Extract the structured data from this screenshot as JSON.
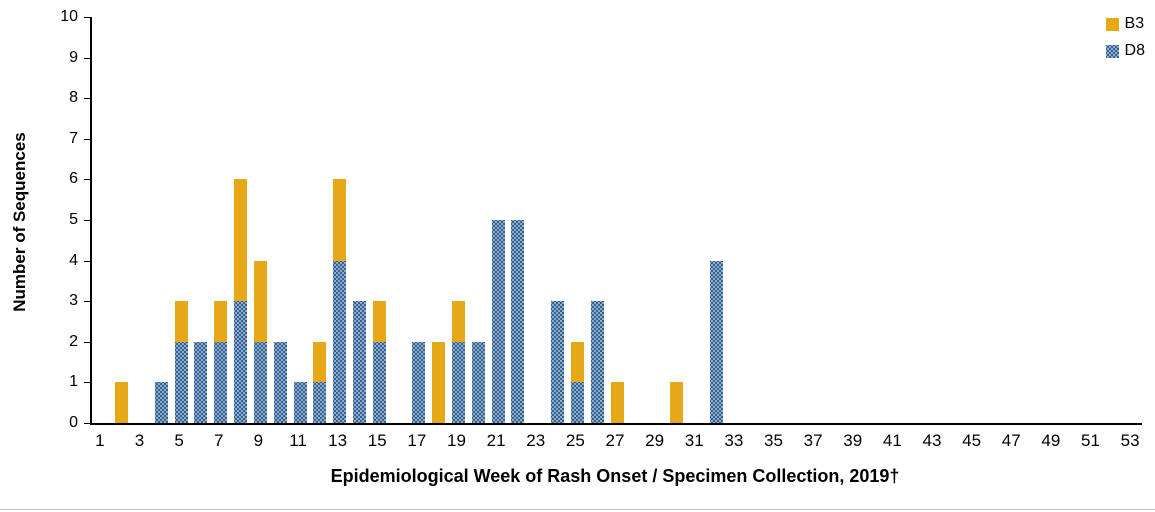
{
  "chart_data": {
    "type": "bar",
    "stacked": true,
    "title": "",
    "xlabel": "Epidemiological Week of Rash Onset / Specimen Collection, 2019†",
    "ylabel": "Number of Sequences",
    "ylim": [
      0,
      10
    ],
    "y_ticks": [
      0,
      1,
      2,
      3,
      4,
      5,
      6,
      7,
      8,
      9,
      10
    ],
    "x_range": [
      1,
      53
    ],
    "x_ticks": [
      1,
      3,
      5,
      7,
      9,
      11,
      13,
      15,
      17,
      19,
      21,
      23,
      25,
      27,
      29,
      31,
      33,
      35,
      37,
      39,
      41,
      43,
      45,
      47,
      49,
      51,
      53
    ],
    "grid": false,
    "legend_position": "top-right",
    "legend": [
      {
        "name": "B3",
        "color": "#E6A817",
        "pattern": "solid"
      },
      {
        "name": "D8",
        "color": "#3C6CA8",
        "pattern": "dotted"
      }
    ],
    "series_order_bottom_to_top": [
      "D8",
      "B3"
    ],
    "points": [
      {
        "week": 2,
        "B3": 1,
        "D8": 0
      },
      {
        "week": 4,
        "B3": 0,
        "D8": 1
      },
      {
        "week": 5,
        "B3": 1,
        "D8": 2
      },
      {
        "week": 6,
        "B3": 0,
        "D8": 2
      },
      {
        "week": 7,
        "B3": 1,
        "D8": 2
      },
      {
        "week": 8,
        "B3": 3,
        "D8": 3
      },
      {
        "week": 9,
        "B3": 2,
        "D8": 2
      },
      {
        "week": 10,
        "B3": 0,
        "D8": 2
      },
      {
        "week": 11,
        "B3": 0,
        "D8": 1
      },
      {
        "week": 12,
        "B3": 1,
        "D8": 1
      },
      {
        "week": 13,
        "B3": 2,
        "D8": 4
      },
      {
        "week": 14,
        "B3": 0,
        "D8": 3
      },
      {
        "week": 15,
        "B3": 1,
        "D8": 2
      },
      {
        "week": 17,
        "B3": 0,
        "D8": 2
      },
      {
        "week": 18,
        "B3": 2,
        "D8": 0
      },
      {
        "week": 19,
        "B3": 1,
        "D8": 2
      },
      {
        "week": 20,
        "B3": 0,
        "D8": 2
      },
      {
        "week": 21,
        "B3": 0,
        "D8": 5
      },
      {
        "week": 22,
        "B3": 0,
        "D8": 5
      },
      {
        "week": 24,
        "B3": 0,
        "D8": 3
      },
      {
        "week": 25,
        "B3": 1,
        "D8": 1
      },
      {
        "week": 26,
        "B3": 0,
        "D8": 3
      },
      {
        "week": 27,
        "B3": 1,
        "D8": 0
      },
      {
        "week": 30,
        "B3": 1,
        "D8": 0
      },
      {
        "week": 32,
        "B3": 0,
        "D8": 4
      }
    ]
  }
}
